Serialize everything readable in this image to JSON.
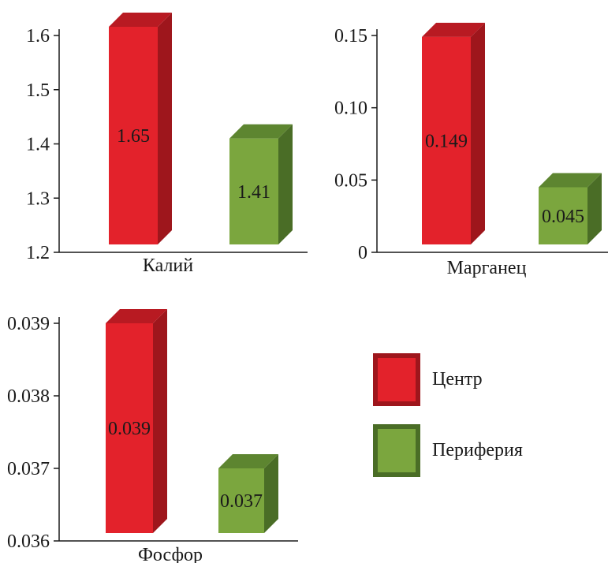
{
  "chart_data": [
    {
      "type": "bar",
      "categories": [
        "Калий"
      ],
      "series": [
        {
          "name": "Центр",
          "values": [
            1.65
          ],
          "label": "1.65"
        },
        {
          "name": "Периферия",
          "values": [
            1.41
          ],
          "label": "1.41"
        }
      ],
      "xlabel": "Калий",
      "ylim": [
        1.2,
        1.6
      ],
      "yticks": [
        1.2,
        1.3,
        1.4,
        1.5,
        1.6
      ],
      "ytick_labels": [
        "1.2",
        "1.3",
        "1.4",
        "1.5",
        "1.6"
      ],
      "grid": false
    },
    {
      "type": "bar",
      "categories": [
        "Марганец"
      ],
      "series": [
        {
          "name": "Центр",
          "values": [
            0.149
          ],
          "label": "0.149"
        },
        {
          "name": "Периферия",
          "values": [
            0.045
          ],
          "label": "0.045"
        }
      ],
      "xlabel": "Марганец",
      "ylim": [
        0,
        0.15
      ],
      "yticks": [
        0,
        0.05,
        0.1,
        0.15
      ],
      "ytick_labels": [
        "0",
        "0.05",
        "0.10",
        "0.15"
      ],
      "grid": false
    },
    {
      "type": "bar",
      "categories": [
        "Фосфор"
      ],
      "series": [
        {
          "name": "Центр",
          "values": [
            0.039
          ],
          "label": "0.039"
        },
        {
          "name": "Периферия",
          "values": [
            0.037
          ],
          "label": "0.037"
        }
      ],
      "xlabel": "Фосфор",
      "ylim": [
        0.036,
        0.039
      ],
      "yticks": [
        0.036,
        0.037,
        0.038,
        0.039
      ],
      "ytick_labels": [
        "0.036",
        "0.037",
        "0.038",
        "0.039"
      ],
      "grid": false
    }
  ],
  "legend": {
    "placement": "bottom-right",
    "items": [
      {
        "label": "Центр",
        "color": "#e3222b"
      },
      {
        "label": "Периферия",
        "color": "#7ba63e"
      }
    ]
  },
  "colors": {
    "center_front": "#e3222b",
    "center_side": "#9e161c",
    "center_top": "#b81a22",
    "periphery_front": "#7ba63e",
    "periphery_side": "#4a6d26",
    "periphery_top": "#5d8530"
  }
}
